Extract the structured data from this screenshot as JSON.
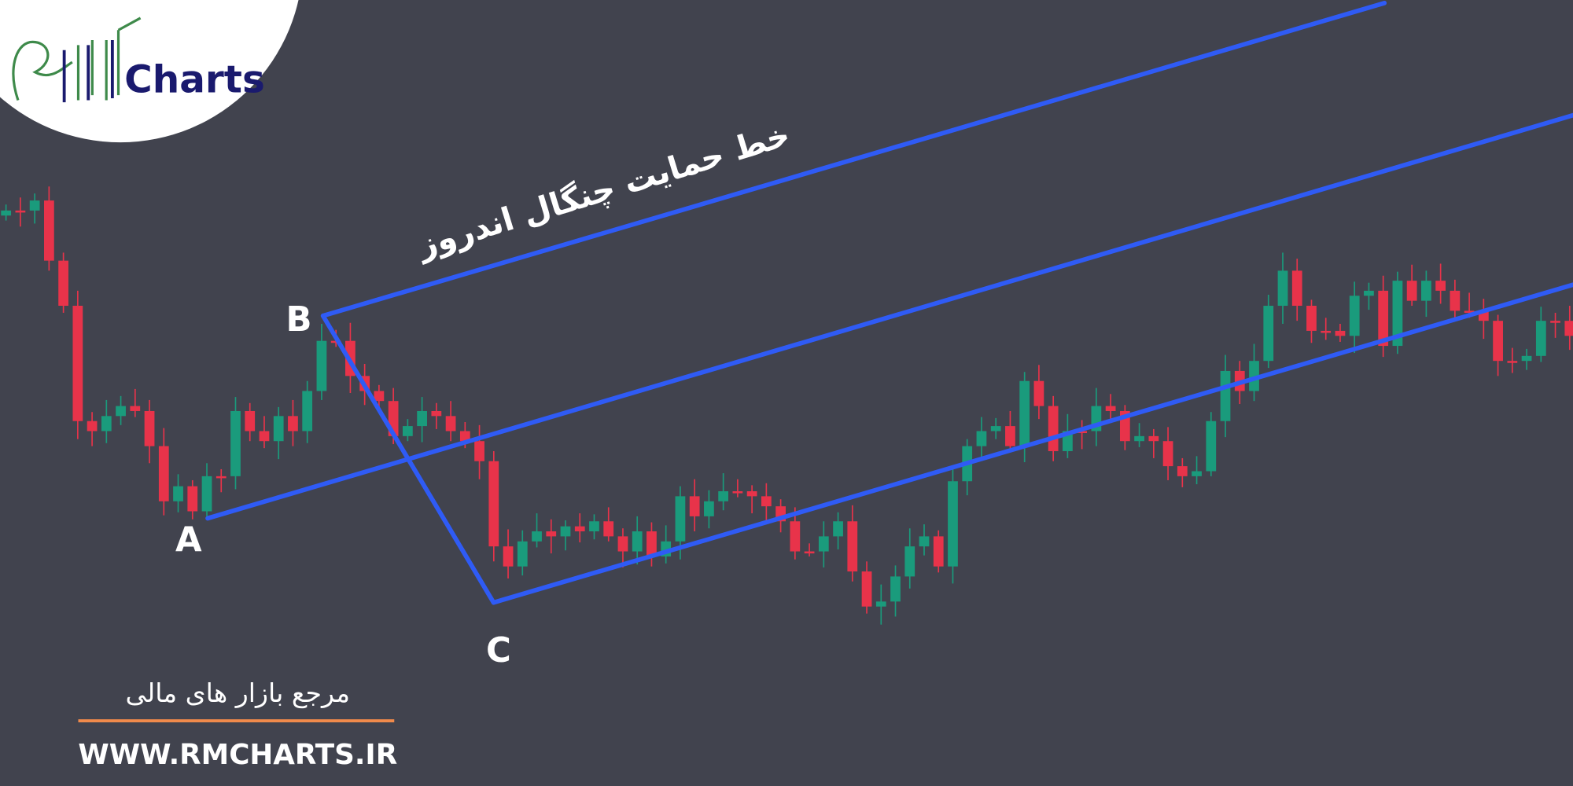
{
  "logo": {
    "text": "Charts"
  },
  "annotation": "خط حمایت چنگال اندروز",
  "points": {
    "a": "A",
    "b": "B",
    "c": "C"
  },
  "footer": {
    "tagline": "مرجع بازار های مالی",
    "website": "WWW.RMCHARTS.IR"
  }
}
